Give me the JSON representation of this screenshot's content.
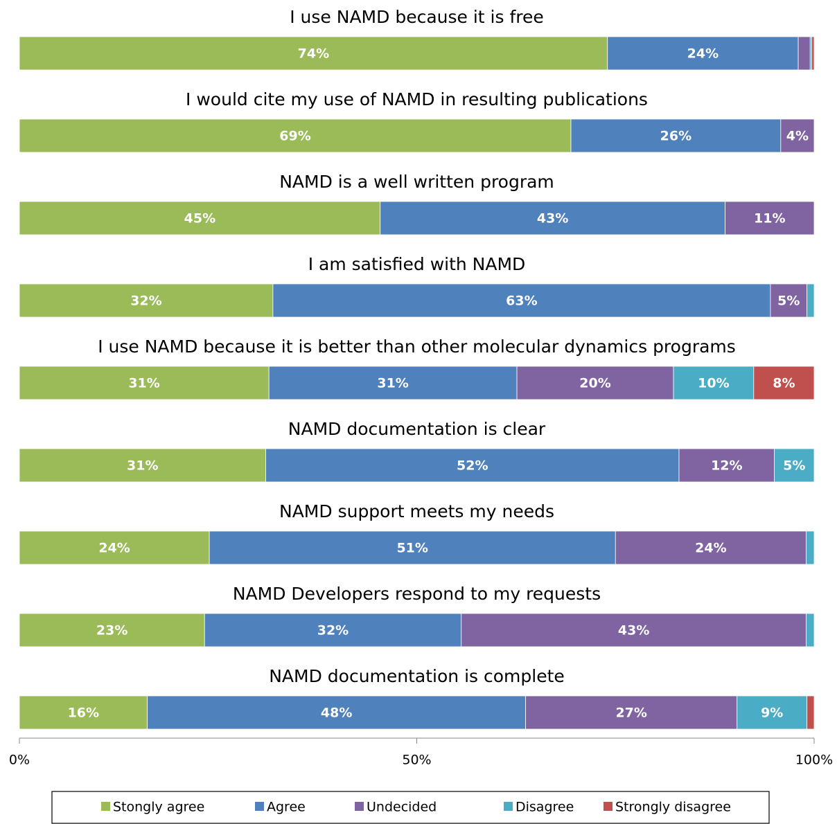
{
  "chart_data": {
    "type": "stacked-bar-horizontal",
    "categories": [
      "I use NAMD because it is free",
      "I would cite my use of NAMD in resulting publications",
      "NAMD is a well written program",
      "I am satisfied with NAMD",
      "I use NAMD because it is better than other molecular dynamics programs",
      "NAMD documentation is clear",
      "NAMD support meets my needs",
      "NAMD Developers respond to my requests",
      "NAMD documentation is complete"
    ],
    "series": [
      {
        "name": "Stongly agree",
        "color": "#9bbb59",
        "values": [
          74,
          69.4,
          45.4,
          31.9,
          31.4,
          31,
          23.9,
          23.3,
          16.1
        ],
        "value_labels": [
          "74%",
          "69%",
          "45%",
          "32%",
          "31%",
          "31%",
          "24%",
          "23%",
          "16%"
        ]
      },
      {
        "name": "Agree",
        "color": "#4f81bd",
        "values": [
          24,
          26.4,
          43.4,
          62.6,
          31.2,
          52,
          51.1,
          32.3,
          47.6
        ],
        "value_labels": [
          "24%",
          "26%",
          "43%",
          "63%",
          "31%",
          "52%",
          "51%",
          "32%",
          "48%"
        ]
      },
      {
        "name": "Undecided",
        "color": "#8064a2",
        "values": [
          1.5,
          4.2,
          11.2,
          4.6,
          19.7,
          12,
          24,
          43.4,
          26.6
        ],
        "value_labels": [
          null,
          "4%",
          "11%",
          "5%",
          "20%",
          "12%",
          "24%",
          "43%",
          "27%"
        ]
      },
      {
        "name": "Disagree",
        "color": "#4bacc6",
        "values": [
          0.2,
          0,
          0,
          0.9,
          10.1,
          5,
          1,
          1,
          8.8
        ],
        "value_labels": [
          null,
          null,
          null,
          null,
          "10%",
          "5%",
          null,
          null,
          "9%"
        ]
      },
      {
        "name": "Strongly disagree",
        "color": "#c0504d",
        "values": [
          0.3,
          0,
          0,
          0,
          7.6,
          0,
          0,
          0,
          0.9
        ],
        "value_labels": [
          null,
          null,
          null,
          null,
          "8%",
          null,
          null,
          null,
          null
        ]
      }
    ],
    "xlim": [
      0,
      100
    ],
    "xticks": [
      {
        "value": 0,
        "label": "0%"
      },
      {
        "value": 50,
        "label": "50%"
      },
      {
        "value": 100,
        "label": "100%"
      }
    ],
    "legend": "bottom"
  }
}
